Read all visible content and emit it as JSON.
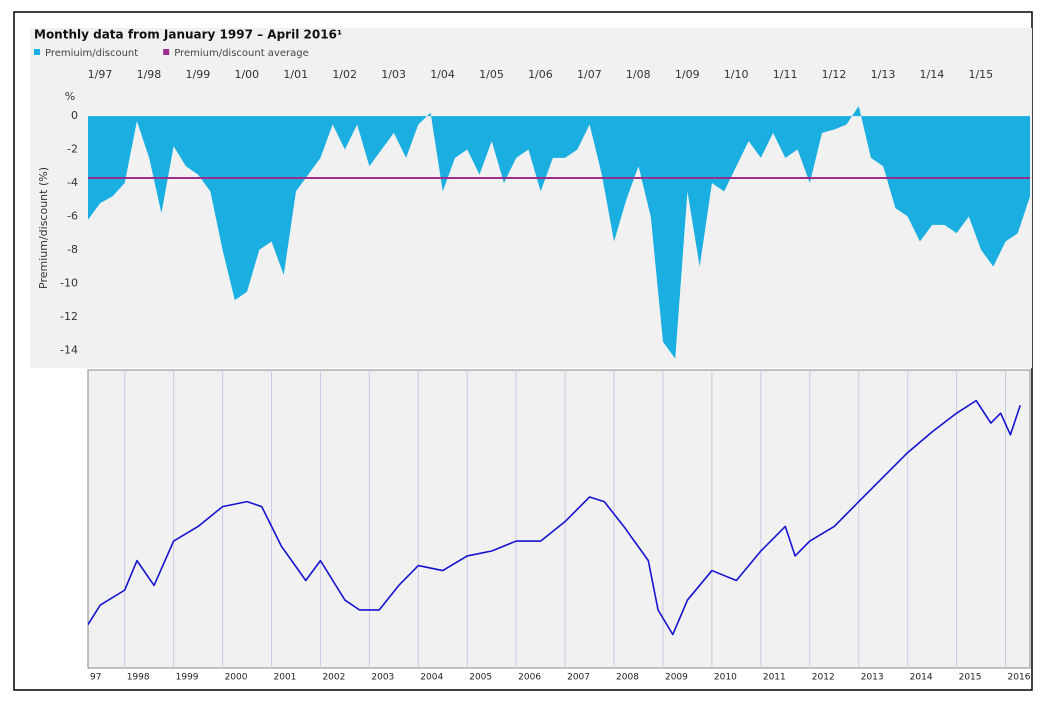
{
  "chart_data": [
    {
      "type": "area",
      "title": "Monthly data from January 1997 – April 2016¹",
      "ylabel": "Premium/discount (%)",
      "y_unit": "%",
      "x": [
        "1997-01",
        "1997-04",
        "1997-07",
        "1997-10",
        "1998-01",
        "1998-04",
        "1998-07",
        "1998-10",
        "1999-01",
        "1999-04",
        "1999-07",
        "1999-10",
        "2000-01",
        "2000-04",
        "2000-07",
        "2000-10",
        "2001-01",
        "2001-04",
        "2001-07",
        "2001-10",
        "2002-01",
        "2002-04",
        "2002-07",
        "2002-10",
        "2003-01",
        "2003-04",
        "2003-07",
        "2003-10",
        "2004-01",
        "2004-04",
        "2004-07",
        "2004-10",
        "2005-01",
        "2005-04",
        "2005-07",
        "2005-10",
        "2006-01",
        "2006-04",
        "2006-07",
        "2006-10",
        "2007-01",
        "2007-04",
        "2007-07",
        "2007-10",
        "2008-01",
        "2008-04",
        "2008-07",
        "2008-10",
        "2009-01",
        "2009-04",
        "2009-07",
        "2009-10",
        "2010-01",
        "2010-04",
        "2010-07",
        "2010-10",
        "2011-01",
        "2011-04",
        "2011-07",
        "2011-10",
        "2012-01",
        "2012-04",
        "2012-07",
        "2012-10",
        "2013-01",
        "2013-04",
        "2013-07",
        "2013-10",
        "2014-01",
        "2014-04",
        "2014-07",
        "2014-10",
        "2015-01",
        "2015-04",
        "2015-07",
        "2015-10",
        "2016-01",
        "2016-04"
      ],
      "series": [
        {
          "name": "Premiuim/discount",
          "color": "#1aafe0",
          "values": [
            -6.2,
            -5.2,
            -4.8,
            -4.0,
            -0.3,
            -2.5,
            -5.8,
            -1.8,
            -3.0,
            -3.5,
            -4.5,
            -8.0,
            -11.0,
            -10.5,
            -8.0,
            -7.5,
            -9.5,
            -4.5,
            -3.5,
            -2.5,
            -0.5,
            -2.0,
            -0.5,
            -3.0,
            -2.0,
            -1.0,
            -2.5,
            -0.5,
            0.2,
            -4.5,
            -2.5,
            -2.0,
            -3.5,
            -1.5,
            -4.0,
            -2.5,
            -2.0,
            -4.5,
            -2.5,
            -2.5,
            -2.0,
            -0.5,
            -3.5,
            -7.5,
            -5.0,
            -3.0,
            -6.0,
            -13.5,
            -14.5,
            -4.5,
            -9.0,
            -4.0,
            -4.5,
            -3.0,
            -1.5,
            -2.5,
            -1.0,
            -2.5,
            -2.0,
            -4.0,
            -1.0,
            -0.8,
            -0.5,
            0.6,
            -2.5,
            -3.0,
            -5.5,
            -6.0,
            -7.5,
            -6.5,
            -6.5,
            -7.0,
            -6.0,
            -8.0,
            -9.0,
            -7.5,
            -7.0,
            -4.8
          ]
        },
        {
          "name": "Premium/discount average",
          "color": "#9b2d8f",
          "value": -3.7
        }
      ],
      "xlim": [
        "1997-01",
        "2016-04"
      ],
      "xticks": [
        {
          "value": "1997-01",
          "label": "1/97"
        },
        {
          "value": "1998-01",
          "label": "1/98"
        },
        {
          "value": "1999-01",
          "label": "1/99"
        },
        {
          "value": "2000-01",
          "label": "1/00"
        },
        {
          "value": "2001-01",
          "label": "1/01"
        },
        {
          "value": "2002-01",
          "label": "1/02"
        },
        {
          "value": "2003-01",
          "label": "1/03"
        },
        {
          "value": "2004-01",
          "label": "1/04"
        },
        {
          "value": "2005-01",
          "label": "1/05"
        },
        {
          "value": "2006-01",
          "label": "1/06"
        },
        {
          "value": "2007-01",
          "label": "1/07"
        },
        {
          "value": "2008-01",
          "label": "1/08"
        },
        {
          "value": "2009-01",
          "label": "1/09"
        },
        {
          "value": "2010-01",
          "label": "1/10"
        },
        {
          "value": "2011-01",
          "label": "1/11"
        },
        {
          "value": "2012-01",
          "label": "1/12"
        },
        {
          "value": "2013-01",
          "label": "1/13"
        },
        {
          "value": "2014-01",
          "label": "1/14"
        },
        {
          "value": "2015-01",
          "label": "1/15"
        }
      ],
      "ylim": [
        -15,
        1.5
      ],
      "yticks": [
        0,
        -2,
        -4,
        -6,
        -8,
        -10,
        -12,
        -14
      ]
    },
    {
      "type": "line",
      "x": [
        1997.25,
        1997.5,
        1998.0,
        1998.25,
        1998.6,
        1999.0,
        1999.5,
        2000.0,
        2000.5,
        2000.8,
        2001.2,
        2001.7,
        2002.0,
        2002.5,
        2002.8,
        2003.2,
        2003.6,
        2004.0,
        2004.5,
        2005.0,
        2005.5,
        2006.0,
        2006.5,
        2007.0,
        2007.5,
        2007.8,
        2008.2,
        2008.7,
        2008.9,
        2009.2,
        2009.5,
        2010.0,
        2010.5,
        2011.0,
        2011.5,
        2011.7,
        2012.0,
        2012.5,
        2013.0,
        2013.5,
        2014.0,
        2014.5,
        2015.0,
        2015.4,
        2015.7,
        2015.9,
        2016.1,
        2016.3
      ],
      "series": [
        {
          "color": "#1414d0",
          "values": [
            13.5,
            20.2,
            25.3,
            35.4,
            26.9,
            42.1,
            47.1,
            53.9,
            55.6,
            53.9,
            40.4,
            28.6,
            35.4,
            21.9,
            18.5,
            18.5,
            26.9,
            33.7,
            32.0,
            37.0,
            38.7,
            42.1,
            42.1,
            48.8,
            57.2,
            55.6,
            47.1,
            35.4,
            18.5,
            10.1,
            21.9,
            32.0,
            28.6,
            38.7,
            47.1,
            37.0,
            42.1,
            47.1,
            55.6,
            64.0,
            72.4,
            79.5,
            85.9,
            90.2,
            82.5,
            85.9,
            78.5,
            88.6
          ]
        }
      ],
      "xlim": [
        1997.25,
        2016.5
      ],
      "xticks": [
        {
          "value": 1997,
          "label": "97"
        },
        1998,
        1999,
        2000,
        2001,
        2002,
        2003,
        2004,
        2005,
        2006,
        2007,
        2008,
        2009,
        2010,
        2011,
        2012,
        2013,
        2014,
        2015,
        2016
      ],
      "ylim": [
        0,
        100
      ]
    }
  ]
}
